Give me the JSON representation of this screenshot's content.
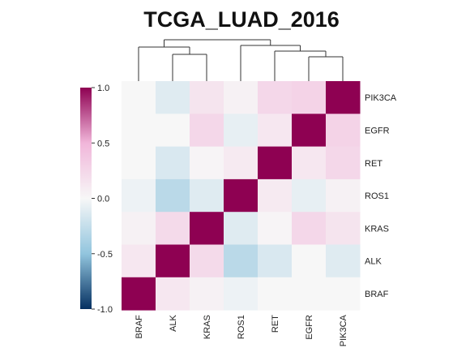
{
  "chart_data": {
    "type": "heatmap",
    "title": "TCGA_LUAD_2016",
    "rows": [
      "PIK3CA",
      "EGFR",
      "RET",
      "ROS1",
      "KRAS",
      "ALK",
      "BRAF"
    ],
    "columns": [
      "BRAF",
      "ALK",
      "KRAS",
      "ROS1",
      "RET",
      "EGFR",
      "PIK3CA"
    ],
    "values": [
      [
        0.0,
        -0.12,
        0.15,
        0.05,
        0.25,
        0.28,
        1.0
      ],
      [
        0.0,
        0.0,
        0.25,
        -0.08,
        0.12,
        1.0,
        0.28
      ],
      [
        0.0,
        -0.15,
        0.02,
        0.1,
        1.0,
        0.12,
        0.25
      ],
      [
        -0.05,
        -0.3,
        -0.12,
        1.0,
        0.1,
        -0.08,
        0.05
      ],
      [
        0.05,
        0.22,
        1.0,
        -0.12,
        0.02,
        0.25,
        0.15
      ],
      [
        0.12,
        1.0,
        0.22,
        -0.3,
        -0.15,
        0.0,
        -0.12
      ],
      [
        1.0,
        0.12,
        0.05,
        -0.05,
        0.0,
        0.0,
        0.0
      ]
    ],
    "colorbar": {
      "range": [
        -1.0,
        1.0
      ],
      "tick_labels": [
        "1.0",
        "0.5",
        "0.0",
        "-0.5",
        "-1.0"
      ],
      "tick_values": [
        1.0,
        0.5,
        0.0,
        -0.5,
        -1.0
      ],
      "colors": {
        "negative": "#053061",
        "mid_negative": "#92c5de",
        "neutral": "#f7f7f7",
        "mid_positive": "#f1b6da",
        "positive": "#8e0152"
      }
    },
    "dendrogram": "column dendrogram above heatmap",
    "grid": false,
    "legend": "left"
  }
}
